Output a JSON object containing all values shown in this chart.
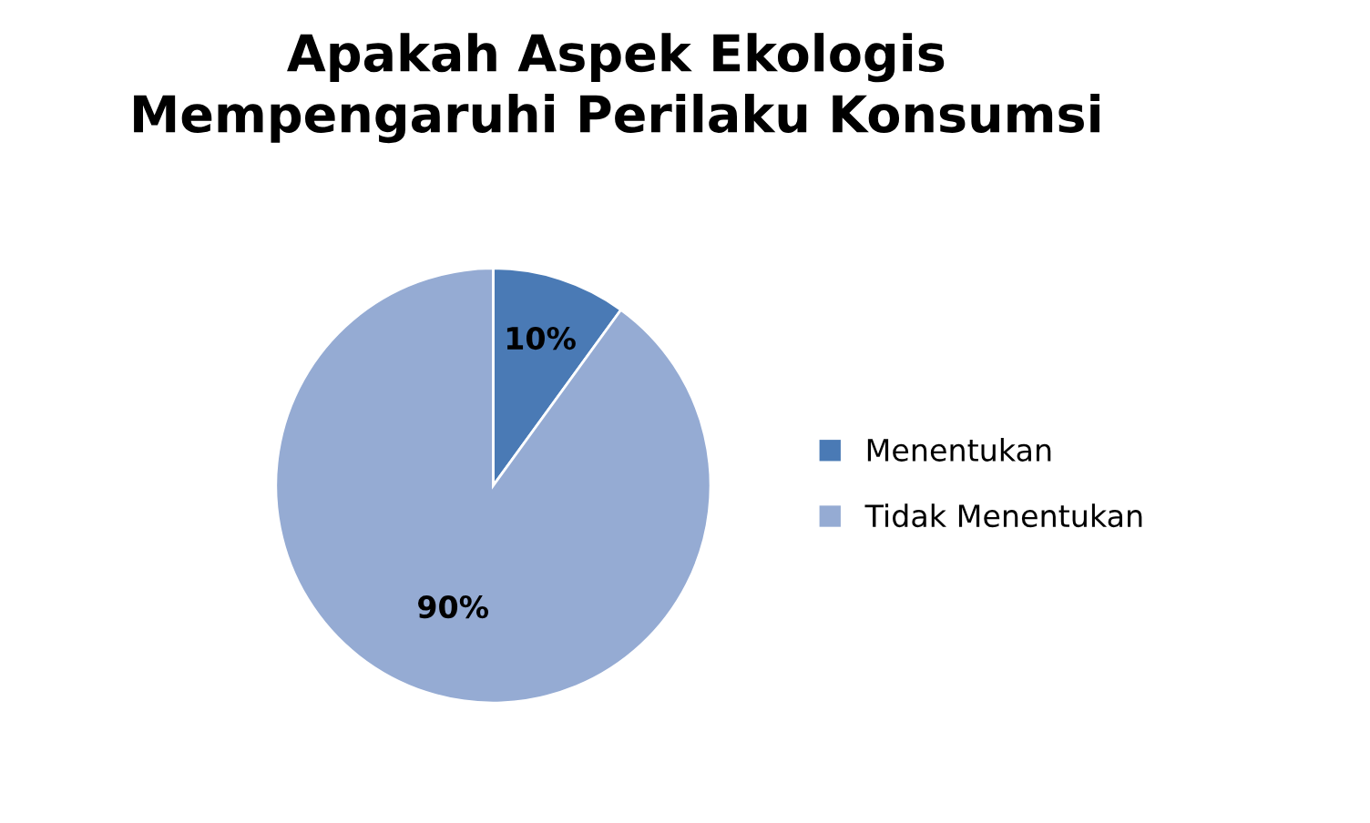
{
  "chart_data": {
    "type": "pie",
    "title": "Apakah Aspek Ekologis\nMempengaruhi Perilaku Konsumsi",
    "categories": [
      "Menentukan",
      "Tidak Menentukan"
    ],
    "values": [
      10,
      90
    ],
    "colors": [
      "#4a7ab5",
      "#95abd3"
    ],
    "value_labels": [
      "10%",
      "90%"
    ],
    "legend": "right"
  }
}
